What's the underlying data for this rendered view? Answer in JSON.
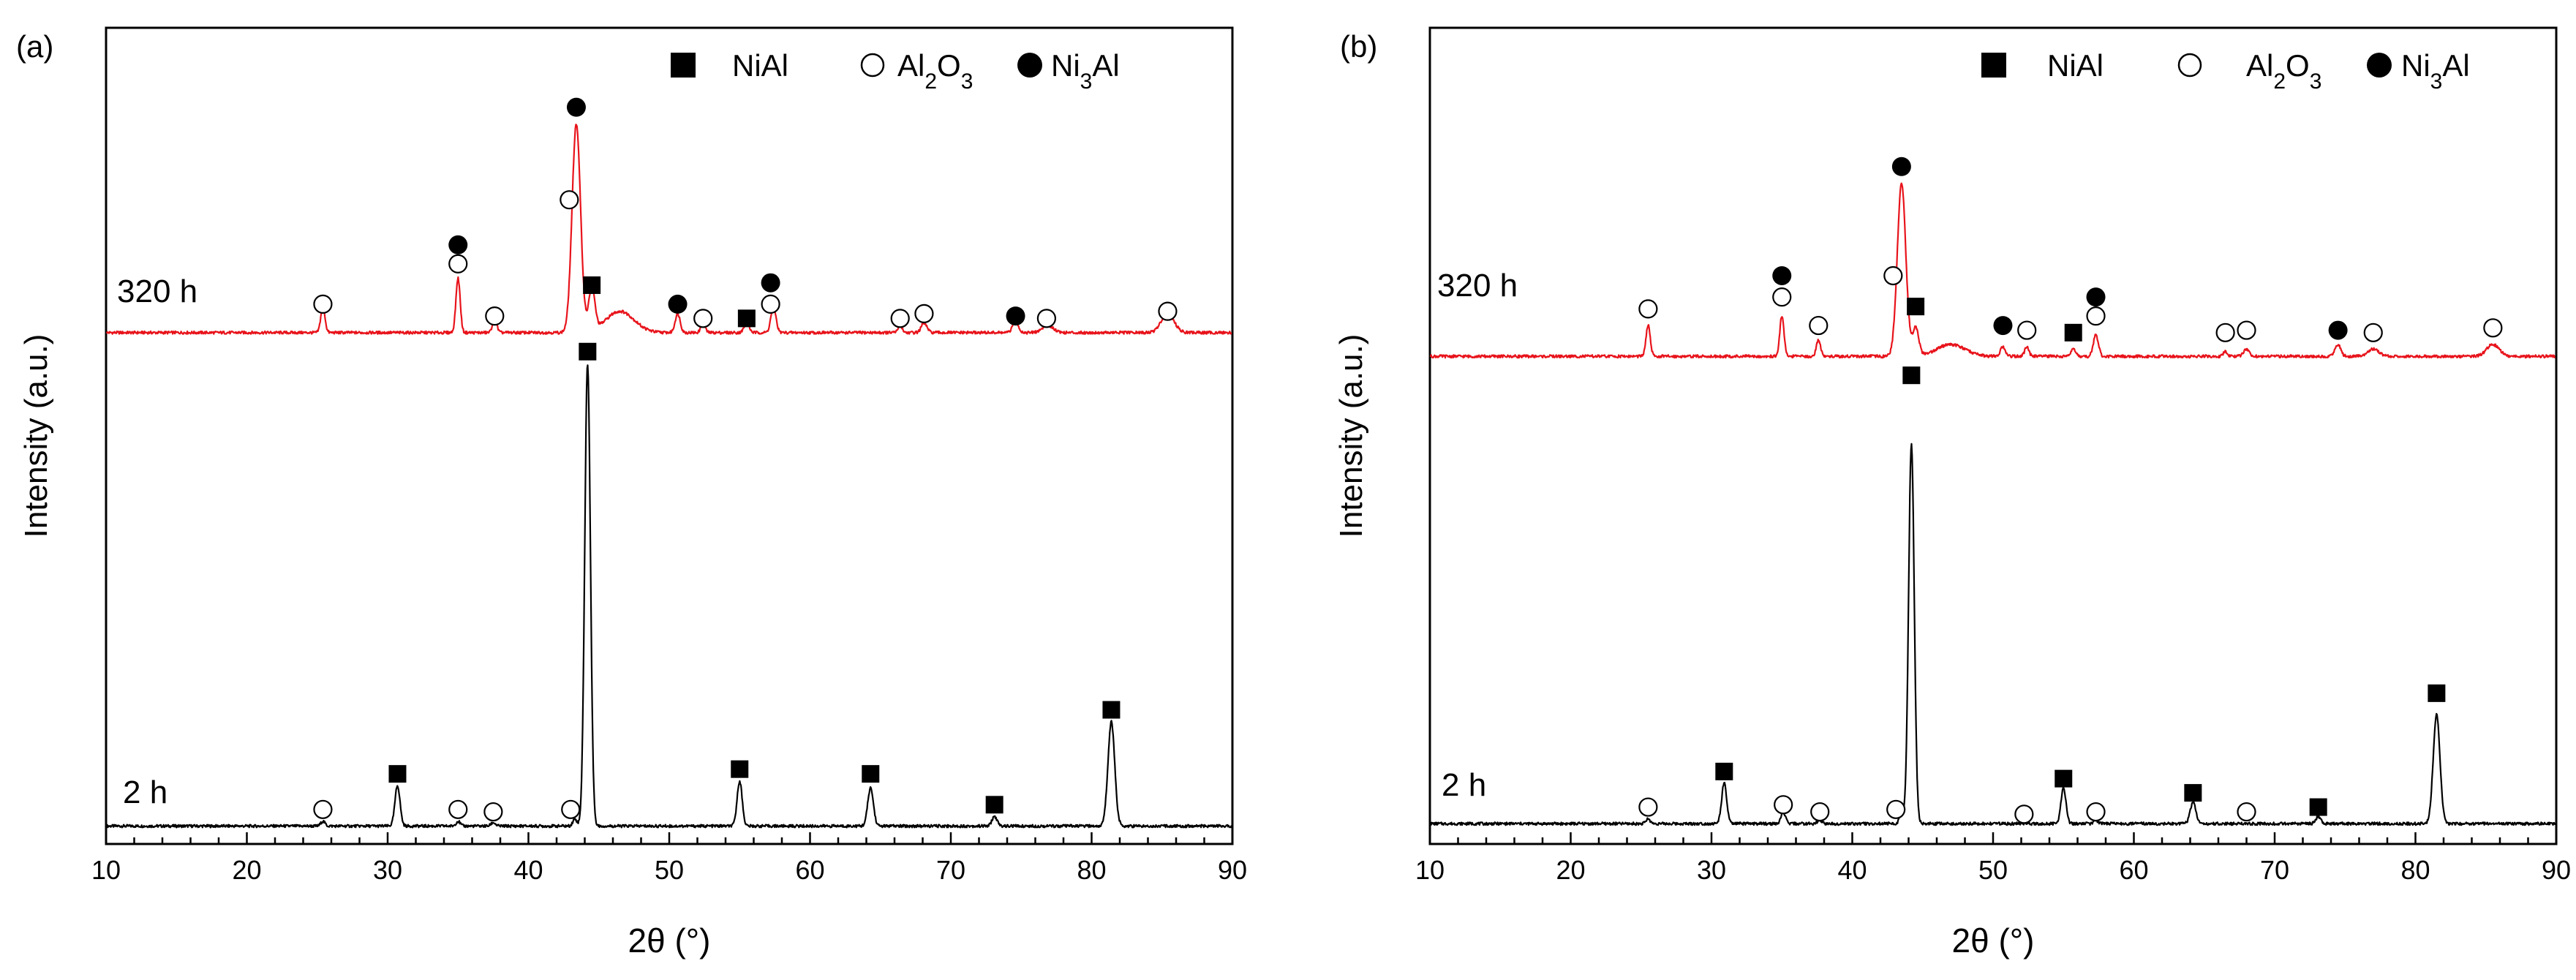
{
  "chart_data": [
    {
      "panel": "(a)",
      "type": "line",
      "xlabel": "2θ (°)",
      "ylabel": "Intensity (a.u.)",
      "xlim": [
        10,
        90
      ],
      "xticks": [
        10,
        20,
        30,
        40,
        50,
        60,
        70,
        80,
        90
      ],
      "grid": false,
      "legend_position": "top-right",
      "legend": [
        {
          "symbol": "filled-square",
          "label": "NiAl"
        },
        {
          "symbol": "open-circle",
          "label": "Al2O3"
        },
        {
          "symbol": "filled-circle",
          "label": "Ni3Al"
        }
      ],
      "series": [
        {
          "name": "2 h",
          "color": "#000000",
          "baseline": 0.02,
          "peaks": [
            {
              "x": 25.4,
              "h": 0.02,
              "w": 0.15
            },
            {
              "x": 30.7,
              "h": 0.17,
              "w": 0.18
            },
            {
              "x": 35.0,
              "h": 0.02,
              "w": 0.15
            },
            {
              "x": 37.5,
              "h": 0.015,
              "w": 0.15
            },
            {
              "x": 43.3,
              "h": 0.03,
              "w": 0.15
            },
            {
              "x": 44.2,
              "h": 1.95,
              "w": 0.2
            },
            {
              "x": 55.0,
              "h": 0.19,
              "w": 0.18
            },
            {
              "x": 64.3,
              "h": 0.16,
              "w": 0.2
            },
            {
              "x": 73.1,
              "h": 0.04,
              "w": 0.18
            },
            {
              "x": 81.4,
              "h": 0.44,
              "w": 0.24
            }
          ],
          "markers": [
            {
              "x": 25.4,
              "phase": "Al2O3",
              "y": 0.09
            },
            {
              "x": 30.7,
              "phase": "NiAl",
              "y": 0.24
            },
            {
              "x": 35.0,
              "phase": "Al2O3",
              "y": 0.09
            },
            {
              "x": 37.5,
              "phase": "Al2O3",
              "y": 0.08
            },
            {
              "x": 43.0,
              "phase": "Al2O3",
              "y": 0.09
            },
            {
              "x": 44.2,
              "phase": "NiAl",
              "y": 2.02
            },
            {
              "x": 55.0,
              "phase": "NiAl",
              "y": 0.26
            },
            {
              "x": 64.3,
              "phase": "NiAl",
              "y": 0.24
            },
            {
              "x": 73.1,
              "phase": "NiAl",
              "y": 0.11
            },
            {
              "x": 81.4,
              "phase": "NiAl",
              "y": 0.51
            }
          ]
        },
        {
          "name": "320 h",
          "color": "#e8131b",
          "baseline": 2.1,
          "peaks": [
            {
              "x": 25.4,
              "h": 0.11,
              "w": 0.15
            },
            {
              "x": 35.0,
              "h": 0.23,
              "w": 0.15
            },
            {
              "x": 37.6,
              "h": 0.06,
              "w": 0.15
            },
            {
              "x": 43.4,
              "h": 0.88,
              "w": 0.3
            },
            {
              "x": 44.5,
              "h": 0.18,
              "w": 0.22
            },
            {
              "x": 46.5,
              "h": 0.09,
              "w": 1.0
            },
            {
              "x": 50.6,
              "h": 0.08,
              "w": 0.18
            },
            {
              "x": 52.4,
              "h": 0.04,
              "w": 0.15
            },
            {
              "x": 55.5,
              "h": 0.04,
              "w": 0.18
            },
            {
              "x": 57.4,
              "h": 0.11,
              "w": 0.18
            },
            {
              "x": 66.4,
              "h": 0.03,
              "w": 0.15
            },
            {
              "x": 68.1,
              "h": 0.04,
              "w": 0.2
            },
            {
              "x": 74.6,
              "h": 0.05,
              "w": 0.2
            },
            {
              "x": 76.9,
              "h": 0.03,
              "w": 0.4
            },
            {
              "x": 85.4,
              "h": 0.08,
              "w": 0.45
            }
          ],
          "markers": [
            {
              "x": 25.4,
              "phase": "Al2O3",
              "y": 2.22
            },
            {
              "x": 35.0,
              "phase": "Al2O3",
              "y": 2.39
            },
            {
              "x": 35.0,
              "phase": "Ni3Al",
              "y": 2.47
            },
            {
              "x": 37.6,
              "phase": "Al2O3",
              "y": 2.17
            },
            {
              "x": 42.9,
              "phase": "Al2O3",
              "y": 2.66
            },
            {
              "x": 43.4,
              "phase": "Ni3Al",
              "y": 3.05
            },
            {
              "x": 44.5,
              "phase": "NiAl",
              "y": 2.3
            },
            {
              "x": 50.6,
              "phase": "Ni3Al",
              "y": 2.22
            },
            {
              "x": 52.4,
              "phase": "Al2O3",
              "y": 2.16
            },
            {
              "x": 55.5,
              "phase": "NiAl",
              "y": 2.16
            },
            {
              "x": 57.2,
              "phase": "Al2O3",
              "y": 2.22
            },
            {
              "x": 57.2,
              "phase": "Ni3Al",
              "y": 2.31
            },
            {
              "x": 66.4,
              "phase": "Al2O3",
              "y": 2.16
            },
            {
              "x": 68.1,
              "phase": "Al2O3",
              "y": 2.18
            },
            {
              "x": 74.6,
              "phase": "Ni3Al",
              "y": 2.17
            },
            {
              "x": 76.8,
              "phase": "Al2O3",
              "y": 2.16
            },
            {
              "x": 85.4,
              "phase": "Al2O3",
              "y": 2.19
            }
          ]
        }
      ]
    },
    {
      "panel": "(b)",
      "type": "line",
      "xlabel": "2θ (°)",
      "ylabel": "Intensity (a.u.)",
      "xlim": [
        10,
        90
      ],
      "xticks": [
        10,
        20,
        30,
        40,
        50,
        60,
        70,
        80,
        90
      ],
      "grid": false,
      "legend_position": "top-right",
      "legend": [
        {
          "symbol": "filled-square",
          "label": "NiAl"
        },
        {
          "symbol": "open-circle",
          "label": "Al2O3"
        },
        {
          "symbol": "filled-circle",
          "label": "Ni3Al"
        }
      ],
      "series": [
        {
          "name": "2 h",
          "color": "#000000",
          "baseline": 0.03,
          "peaks": [
            {
              "x": 25.5,
              "h": 0.02,
              "w": 0.15
            },
            {
              "x": 30.9,
              "h": 0.17,
              "w": 0.18
            },
            {
              "x": 35.1,
              "h": 0.05,
              "w": 0.15
            },
            {
              "x": 37.7,
              "h": 0.015,
              "w": 0.15
            },
            {
              "x": 43.5,
              "h": 0.04,
              "w": 0.15
            },
            {
              "x": 44.2,
              "h": 1.6,
              "w": 0.2
            },
            {
              "x": 55.0,
              "h": 0.15,
              "w": 0.18
            },
            {
              "x": 57.3,
              "h": 0.015,
              "w": 0.15
            },
            {
              "x": 64.2,
              "h": 0.09,
              "w": 0.2
            },
            {
              "x": 73.1,
              "h": 0.03,
              "w": 0.18
            },
            {
              "x": 81.5,
              "h": 0.46,
              "w": 0.24
            }
          ],
          "markers": [
            {
              "x": 25.5,
              "phase": "Al2O3",
              "y": 0.1
            },
            {
              "x": 30.9,
              "phase": "NiAl",
              "y": 0.25
            },
            {
              "x": 35.1,
              "phase": "Al2O3",
              "y": 0.11
            },
            {
              "x": 37.7,
              "phase": "Al2O3",
              "y": 0.08
            },
            {
              "x": 43.1,
              "phase": "Al2O3",
              "y": 0.09
            },
            {
              "x": 44.2,
              "phase": "NiAl",
              "y": 1.92
            },
            {
              "x": 52.2,
              "phase": "Al2O3",
              "y": 0.07
            },
            {
              "x": 55.0,
              "phase": "NiAl",
              "y": 0.22
            },
            {
              "x": 57.3,
              "phase": "Al2O3",
              "y": 0.08
            },
            {
              "x": 64.2,
              "phase": "NiAl",
              "y": 0.16
            },
            {
              "x": 68.0,
              "phase": "Al2O3",
              "y": 0.08
            },
            {
              "x": 73.1,
              "phase": "NiAl",
              "y": 0.1
            },
            {
              "x": 81.5,
              "phase": "NiAl",
              "y": 0.58
            }
          ]
        },
        {
          "name": "320 h",
          "color": "#e8131b",
          "baseline": 2.0,
          "peaks": [
            {
              "x": 25.5,
              "h": 0.13,
              "w": 0.15
            },
            {
              "x": 35.0,
              "h": 0.17,
              "w": 0.15
            },
            {
              "x": 37.6,
              "h": 0.07,
              "w": 0.15
            },
            {
              "x": 43.5,
              "h": 0.73,
              "w": 0.3
            },
            {
              "x": 44.5,
              "h": 0.12,
              "w": 0.22
            },
            {
              "x": 47.0,
              "h": 0.05,
              "w": 1.0
            },
            {
              "x": 50.7,
              "h": 0.04,
              "w": 0.18
            },
            {
              "x": 52.4,
              "h": 0.04,
              "w": 0.15
            },
            {
              "x": 55.7,
              "h": 0.03,
              "w": 0.18
            },
            {
              "x": 57.3,
              "h": 0.09,
              "w": 0.18
            },
            {
              "x": 66.5,
              "h": 0.02,
              "w": 0.15
            },
            {
              "x": 68.0,
              "h": 0.03,
              "w": 0.2
            },
            {
              "x": 74.5,
              "h": 0.05,
              "w": 0.2
            },
            {
              "x": 77.0,
              "h": 0.03,
              "w": 0.4
            },
            {
              "x": 85.5,
              "h": 0.05,
              "w": 0.45
            }
          ],
          "markers": [
            {
              "x": 25.5,
              "phase": "Al2O3",
              "y": 2.2
            },
            {
              "x": 35.0,
              "phase": "Al2O3",
              "y": 2.25
            },
            {
              "x": 35.0,
              "phase": "Ni3Al",
              "y": 2.34
            },
            {
              "x": 37.6,
              "phase": "Al2O3",
              "y": 2.13
            },
            {
              "x": 42.9,
              "phase": "Al2O3",
              "y": 2.34
            },
            {
              "x": 43.5,
              "phase": "Ni3Al",
              "y": 2.8
            },
            {
              "x": 44.5,
              "phase": "NiAl",
              "y": 2.21
            },
            {
              "x": 50.7,
              "phase": "Ni3Al",
              "y": 2.13
            },
            {
              "x": 52.4,
              "phase": "Al2O3",
              "y": 2.11
            },
            {
              "x": 55.7,
              "phase": "NiAl",
              "y": 2.1
            },
            {
              "x": 57.3,
              "phase": "Al2O3",
              "y": 2.17
            },
            {
              "x": 57.3,
              "phase": "Ni3Al",
              "y": 2.25
            },
            {
              "x": 66.5,
              "phase": "Al2O3",
              "y": 2.1
            },
            {
              "x": 68.0,
              "phase": "Al2O3",
              "y": 2.11
            },
            {
              "x": 74.5,
              "phase": "Ni3Al",
              "y": 2.11
            },
            {
              "x": 77.0,
              "phase": "Al2O3",
              "y": 2.1
            },
            {
              "x": 85.5,
              "phase": "Al2O3",
              "y": 2.12
            }
          ]
        }
      ]
    }
  ]
}
